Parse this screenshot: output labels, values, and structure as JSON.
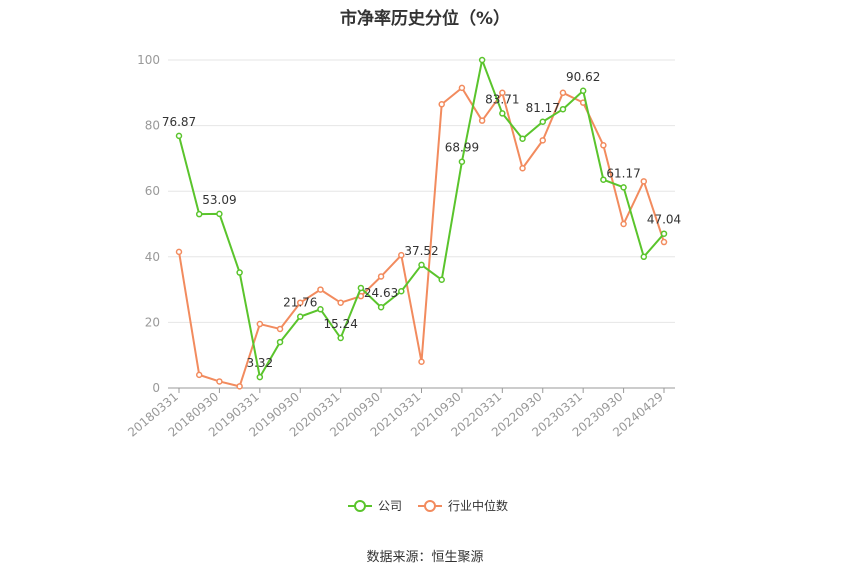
{
  "page": {
    "title": "市净率历史分位（%）",
    "source": "数据来源：恒生聚源"
  },
  "chart_data": {
    "type": "line",
    "title": "市净率历史分位（%）",
    "ylim": [
      0,
      100
    ],
    "yticks": [
      0,
      20,
      40,
      60,
      80,
      100
    ],
    "grid": true,
    "legend_position": "bottom",
    "x_tick_labels": [
      "20180331",
      "20180930",
      "20190331",
      "20190930",
      "20200331",
      "20200930",
      "20210331",
      "20210930",
      "20220331",
      "20220930",
      "20230331",
      "20230930",
      "20240429"
    ],
    "points_per_tick": 2,
    "series": [
      {
        "name": "公司",
        "color": "#5ac42c",
        "values": [
          76.87,
          53.0,
          53.09,
          35.2,
          3.32,
          14.0,
          21.76,
          24.0,
          15.24,
          30.5,
          24.63,
          29.5,
          37.52,
          33.0,
          68.99,
          100.0,
          83.71,
          76.0,
          81.17,
          85.0,
          90.62,
          63.5,
          61.17,
          40.0,
          47.04
        ]
      },
      {
        "name": "行业中位数",
        "color": "#f28b5e",
        "values": [
          41.5,
          4.0,
          2.0,
          0.5,
          19.5,
          18.0,
          26.0,
          30.0,
          26.0,
          28.0,
          34.0,
          40.5,
          8.0,
          86.5,
          91.5,
          81.5,
          90.0,
          67.0,
          75.5,
          90.0,
          87.0,
          74.0,
          50.0,
          63.0,
          44.5
        ]
      }
    ],
    "data_labels": [
      {
        "index": 0,
        "text": "76.87"
      },
      {
        "index": 2,
        "text": "53.09"
      },
      {
        "index": 4,
        "text": "3.32"
      },
      {
        "index": 6,
        "text": "21.76"
      },
      {
        "index": 8,
        "text": "15.24"
      },
      {
        "index": 10,
        "text": "24.63"
      },
      {
        "index": 12,
        "text": "37.52"
      },
      {
        "index": 14,
        "text": "68.99"
      },
      {
        "index": 16,
        "text": "83.71"
      },
      {
        "index": 18,
        "text": "81.17"
      },
      {
        "index": 20,
        "text": "90.62"
      },
      {
        "index": 22,
        "text": "61.17"
      },
      {
        "index": 24,
        "text": "47.04"
      }
    ]
  }
}
